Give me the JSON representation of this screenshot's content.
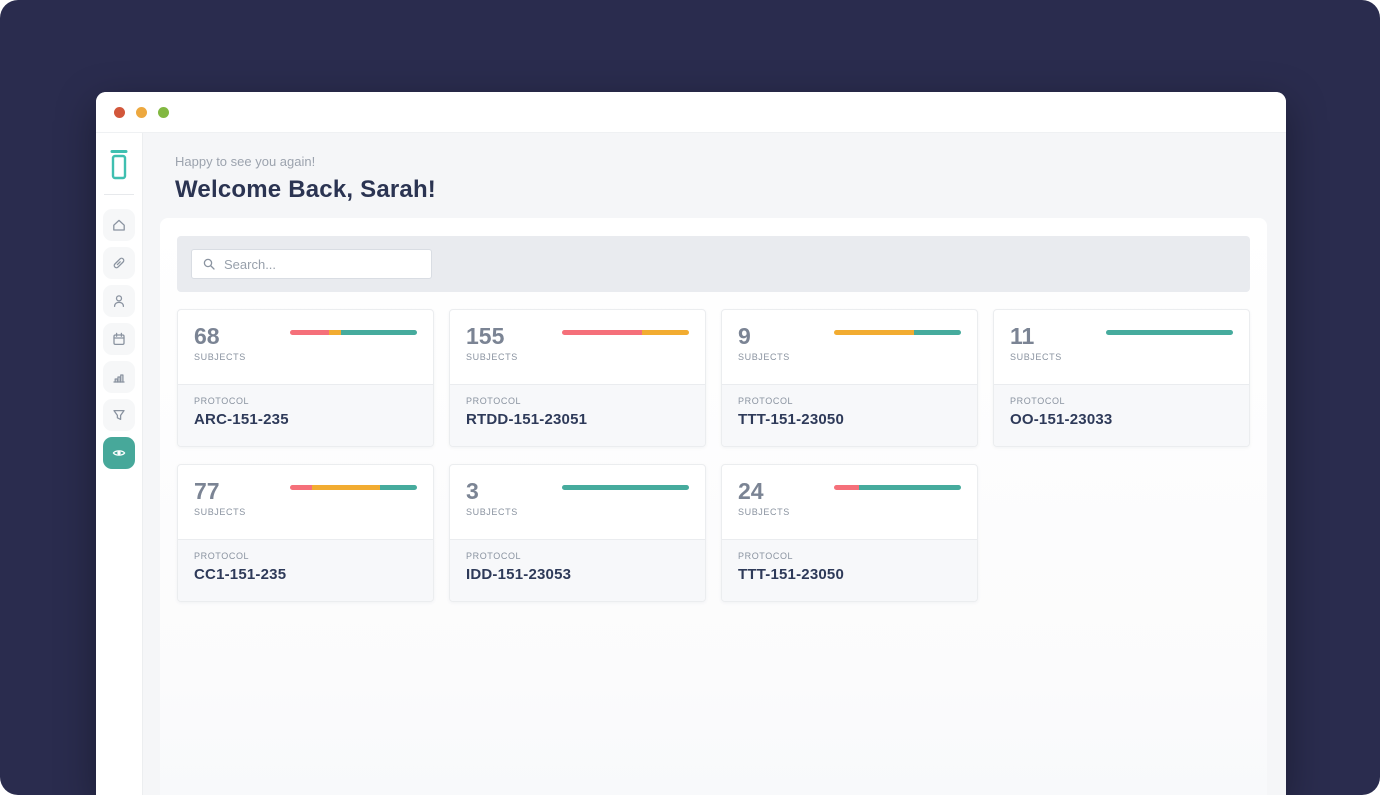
{
  "colors": {
    "coral": "#F5707A",
    "amber": "#F2AC31",
    "teal": "#46AB9D",
    "logo_teal": "#3FBFB0",
    "navy": "#2B3452",
    "dot_red": "#D2573B",
    "dot_yellow": "#EDA83F",
    "dot_green": "#82B841"
  },
  "window": {
    "controls": [
      {
        "name": "close",
        "color": "#D2573B"
      },
      {
        "name": "minimize",
        "color": "#EDA83F"
      },
      {
        "name": "zoom",
        "color": "#82B841"
      }
    ]
  },
  "sidebar": {
    "logo_icon": "vial-icon",
    "items": [
      {
        "icon": "home-icon",
        "active": false
      },
      {
        "icon": "test-tube-icon",
        "active": false
      },
      {
        "icon": "user-icon",
        "active": false
      },
      {
        "icon": "calendar-icon",
        "active": false
      },
      {
        "icon": "bar-chart-icon",
        "active": false
      },
      {
        "icon": "funnel-icon",
        "active": false
      },
      {
        "icon": "eye-icon",
        "active": true
      }
    ]
  },
  "header": {
    "greeting": "Happy to see you again!",
    "title": "Welcome Back, Sarah!"
  },
  "search": {
    "icon": "search-icon",
    "placeholder": "Search...",
    "value": ""
  },
  "cards": [
    {
      "count": "68",
      "count_label": "SUBJECTS",
      "protocol_label": "PROTOCOL",
      "protocol": "ARC-151-235",
      "bar": [
        {
          "color": "coral",
          "pct": 31
        },
        {
          "color": "amber",
          "pct": 9
        },
        {
          "color": "teal",
          "pct": 60
        }
      ]
    },
    {
      "count": "155",
      "count_label": "SUBJECTS",
      "protocol_label": "PROTOCOL",
      "protocol": "RTDD-151-23051",
      "bar": [
        {
          "color": "coral",
          "pct": 63
        },
        {
          "color": "amber",
          "pct": 37
        }
      ]
    },
    {
      "count": "9",
      "count_label": "SUBJECTS",
      "protocol_label": "PROTOCOL",
      "protocol": "TTT-151-23050",
      "bar": [
        {
          "color": "amber",
          "pct": 63
        },
        {
          "color": "teal",
          "pct": 37
        }
      ]
    },
    {
      "count": "11",
      "count_label": "SUBJECTS",
      "protocol_label": "PROTOCOL",
      "protocol": "OO-151-23033",
      "bar": [
        {
          "color": "teal",
          "pct": 100
        }
      ]
    },
    {
      "count": "77",
      "count_label": "SUBJECTS",
      "protocol_label": "PROTOCOL",
      "protocol": "CC1-151-235",
      "bar": [
        {
          "color": "coral",
          "pct": 17
        },
        {
          "color": "amber",
          "pct": 54
        },
        {
          "color": "teal",
          "pct": 29
        }
      ]
    },
    {
      "count": "3",
      "count_label": "SUBJECTS",
      "protocol_label": "PROTOCOL",
      "protocol": "IDD-151-23053",
      "bar": [
        {
          "color": "teal",
          "pct": 100
        }
      ]
    },
    {
      "count": "24",
      "count_label": "SUBJECTS",
      "protocol_label": "PROTOCOL",
      "protocol": "TTT-151-23050",
      "bar": [
        {
          "color": "coral",
          "pct": 20
        },
        {
          "color": "teal",
          "pct": 80
        }
      ]
    }
  ]
}
